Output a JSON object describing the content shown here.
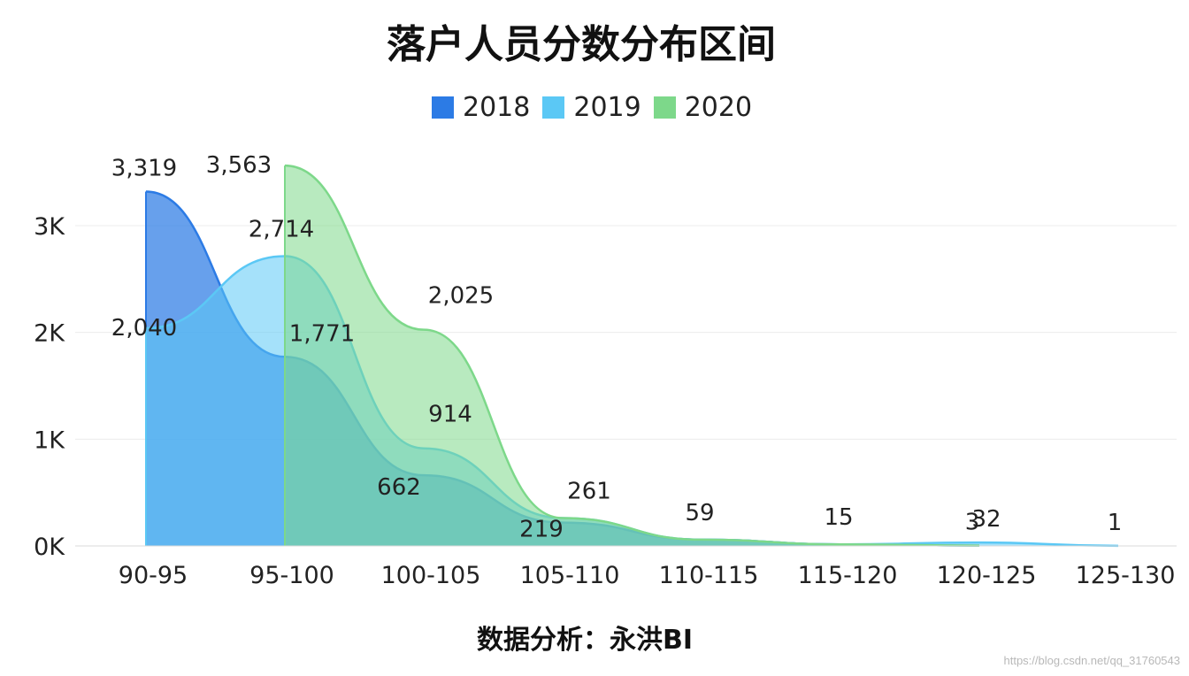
{
  "chart_data": {
    "type": "area",
    "title": "落户人员分数分布区间",
    "footer": "数据分析：永洪BI",
    "categories": [
      "90-95",
      "95-100",
      "100-105",
      "105-110",
      "110-115",
      "115-120",
      "120-125",
      "125-130"
    ],
    "ylim": [
      0,
      3700
    ],
    "y_ticks": [
      {
        "value": 0,
        "label": "0K"
      },
      {
        "value": 1000,
        "label": "1K"
      },
      {
        "value": 2000,
        "label": "2K"
      },
      {
        "value": 3000,
        "label": "3K"
      }
    ],
    "grid": true,
    "legend_position": "top-center",
    "series": [
      {
        "name": "2018",
        "color": "#2c7be5",
        "start_index": 0,
        "values": [
          3319,
          1771,
          662,
          219,
          59,
          15,
          3,
          null
        ],
        "labels": [
          "3,319",
          "1,771",
          "662",
          "219",
          "59",
          "15",
          "3",
          ""
        ]
      },
      {
        "name": "2019",
        "color": "#5bc8f5",
        "start_index": 0,
        "values": [
          2040,
          2714,
          914,
          261,
          59,
          15,
          32,
          1
        ],
        "labels": [
          "2,040",
          "2,714",
          "914",
          "261",
          "",
          "",
          "32",
          "1"
        ]
      },
      {
        "name": "2020",
        "color": "#7dd88a",
        "start_index": 1,
        "values": [
          null,
          3563,
          2025,
          261,
          59,
          15,
          3,
          null
        ],
        "labels": [
          "",
          "3,563",
          "2,025",
          "",
          "",
          "",
          "",
          ""
        ]
      }
    ]
  },
  "watermark": "https://blog.csdn.net/qq_31760543"
}
